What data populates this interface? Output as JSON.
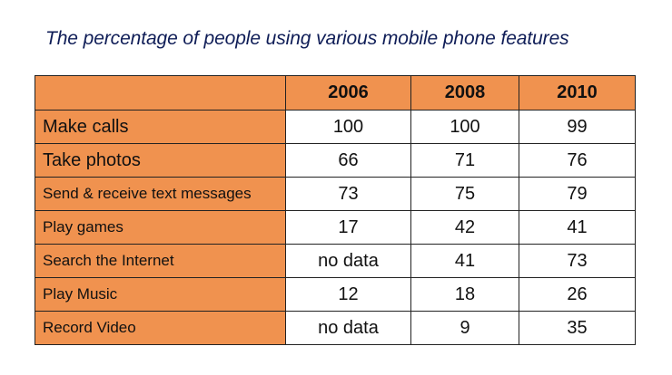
{
  "title": "The percentage of people using various mobile phone features",
  "chart_data": {
    "type": "table",
    "title": "The percentage of people using various mobile phone features",
    "columns": [
      "",
      "2006",
      "2008",
      "2010"
    ],
    "rows": [
      {
        "label": "Make calls",
        "values": [
          "100",
          "100",
          "99"
        ]
      },
      {
        "label": "Take photos",
        "values": [
          "66",
          "71",
          "76"
        ]
      },
      {
        "label": "Send & receive text messages",
        "values": [
          "73",
          "75",
          "79"
        ]
      },
      {
        "label": "Play games",
        "values": [
          "17",
          "42",
          "41"
        ]
      },
      {
        "label": "Search the Internet",
        "values": [
          "no data",
          "41",
          "73"
        ]
      },
      {
        "label": "Play Music",
        "values": [
          "12",
          "18",
          "26"
        ]
      },
      {
        "label": "Record Video",
        "values": [
          "no data",
          "9",
          "35"
        ]
      }
    ]
  },
  "colors": {
    "header_fill": "#f0924f",
    "title_text": "#0f1d57",
    "border": "#222222"
  }
}
